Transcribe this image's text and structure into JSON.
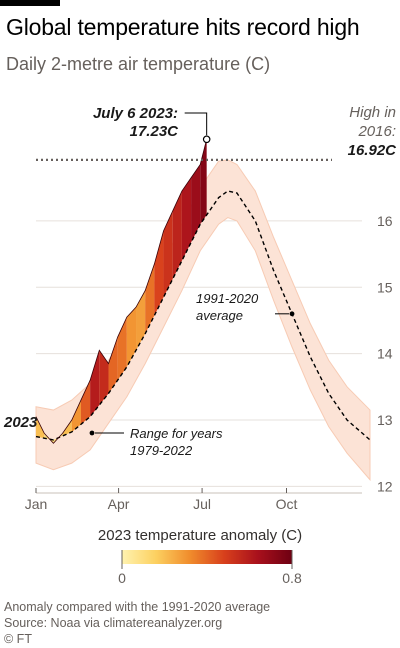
{
  "header": {
    "title": "Global temperature hits record high",
    "subtitle": "Daily 2-metre air temperature (C)"
  },
  "chart_data": {
    "type": "line",
    "x_ticks": [
      "Jan",
      "Apr",
      "Jul",
      "Oct"
    ],
    "y_ticks": [
      12,
      13,
      14,
      15,
      16
    ],
    "y_tick_labels": [
      "12",
      "13",
      "14",
      "15",
      "16"
    ],
    "ylim": [
      11.9,
      17.4
    ],
    "x_unit": "day of year",
    "xlim": [
      1,
      365
    ],
    "grid": true,
    "series": [
      {
        "name": "1991-2020 average",
        "style": "dashed",
        "color": "#000000",
        "x": [
          1,
          20,
          40,
          60,
          80,
          100,
          120,
          140,
          160,
          180,
          200,
          210,
          220,
          240,
          260,
          280,
          300,
          320,
          340,
          365
        ],
        "y": [
          12.75,
          12.7,
          12.82,
          13.05,
          13.4,
          13.8,
          14.3,
          14.85,
          15.4,
          15.95,
          16.35,
          16.45,
          16.42,
          16.0,
          15.25,
          14.6,
          13.95,
          13.4,
          13.0,
          12.7
        ]
      },
      {
        "name": "2023",
        "color": "#e07020",
        "x": [
          1,
          10,
          20,
          30,
          40,
          50,
          60,
          70,
          80,
          90,
          100,
          110,
          120,
          130,
          140,
          150,
          160,
          170,
          180,
          187
        ],
        "y": [
          13.05,
          12.8,
          12.65,
          12.8,
          13.0,
          13.3,
          13.6,
          14.05,
          13.85,
          14.25,
          14.55,
          14.7,
          14.95,
          15.35,
          15.85,
          16.15,
          16.45,
          16.65,
          16.85,
          17.23
        ],
        "anomaly": [
          0.25,
          0.15,
          0.05,
          0.15,
          0.25,
          0.35,
          0.5,
          0.7,
          0.4,
          0.4,
          0.35,
          0.25,
          0.3,
          0.45,
          0.5,
          0.55,
          0.6,
          0.65,
          0.7,
          0.78
        ]
      }
    ],
    "range_band": {
      "name": "Range for years 1979-2022",
      "color": "#fce3d6",
      "x": [
        1,
        20,
        40,
        60,
        80,
        100,
        120,
        140,
        160,
        180,
        200,
        210,
        220,
        240,
        260,
        280,
        300,
        320,
        340,
        365
      ],
      "low": [
        12.35,
        12.25,
        12.35,
        12.55,
        12.95,
        13.35,
        13.85,
        14.4,
        14.95,
        15.55,
        15.95,
        16.05,
        16.0,
        15.55,
        14.8,
        14.1,
        13.45,
        12.9,
        12.5,
        12.1
      ],
      "high": [
        13.2,
        13.15,
        13.3,
        13.55,
        13.9,
        14.3,
        14.8,
        15.35,
        15.95,
        16.5,
        16.9,
        16.92,
        16.85,
        16.45,
        15.75,
        15.1,
        14.45,
        13.9,
        13.5,
        13.15
      ]
    },
    "record_2016": {
      "value": 16.92,
      "label_lines": [
        "High in",
        "2016:"
      ],
      "value_label": "16.92C"
    },
    "record_2023": {
      "day": 187,
      "value": 17.23,
      "label_lines": [
        "July 6 2023:",
        "17.23C"
      ]
    },
    "annotations": {
      "series_2023": "2023",
      "average": [
        "1991-2020",
        "average"
      ],
      "range": [
        "Range for years",
        "1979-2022"
      ]
    },
    "legend": {
      "title": "2023 temperature anomaly (C)",
      "min_label": "0",
      "max_label": "0.8",
      "min": 0,
      "max": 0.8,
      "colors": [
        "#fff3b0",
        "#fcd060",
        "#f08c2c",
        "#d8401c",
        "#a8101c",
        "#6e0012"
      ]
    }
  },
  "footer": {
    "note": "Anomaly compared with the 1991-2020 average",
    "source": "Source: Noaa via climatereanalyzer.org",
    "credit": "© FT"
  }
}
